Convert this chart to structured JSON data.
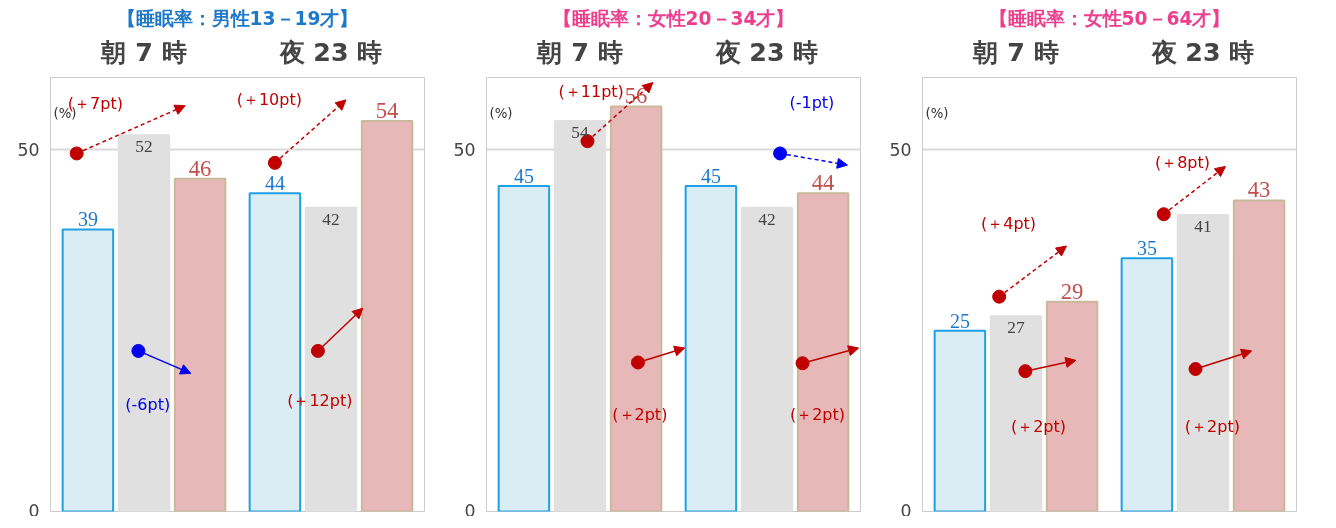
{
  "chart_data": [
    {
      "type": "bar",
      "title": "【睡眠率：男性13－19才】",
      "categories": [
        "朝 7 時",
        "夜 23 時"
      ],
      "ylabel": "(%)",
      "ylim": [
        0,
        60
      ],
      "yticks": [
        0,
        50
      ],
      "grid": "y",
      "data_labels": true,
      "series": [
        {
          "color": "#daedf5",
          "values": [
            39,
            44
          ]
        },
        {
          "color": "#e0e0e0",
          "values": [
            52,
            42
          ]
        },
        {
          "color": "#e6b8b7",
          "values": [
            46,
            54
          ]
        }
      ],
      "annotations": [
        "(＋7pt)",
        "(＋10pt)",
        "(-6pt)",
        "(＋12pt)"
      ]
    },
    {
      "type": "bar",
      "title": "【睡眠率：女性20－34才】",
      "categories": [
        "朝 7 時",
        "夜 23 時"
      ],
      "ylabel": "(%)",
      "ylim": [
        0,
        60
      ],
      "yticks": [
        0,
        50
      ],
      "grid": "y",
      "data_labels": true,
      "series": [
        {
          "color": "#daedf5",
          "values": [
            45,
            45
          ]
        },
        {
          "color": "#e0e0e0",
          "values": [
            54,
            42
          ]
        },
        {
          "color": "#e6b8b7",
          "values": [
            56,
            44
          ]
        }
      ],
      "annotations": [
        "(＋11pt)",
        "(-1pt)",
        "(＋2pt)",
        "(＋2pt)"
      ]
    },
    {
      "type": "bar",
      "title": "【睡眠率：女性50－64才】",
      "categories": [
        "朝 7 時",
        "夜 23 時"
      ],
      "ylabel": "(%)",
      "ylim": [
        0,
        60
      ],
      "yticks": [
        0,
        50
      ],
      "grid": "y",
      "data_labels": true,
      "series": [
        {
          "color": "#daedf5",
          "values": [
            25,
            35
          ]
        },
        {
          "color": "#e0e0e0",
          "values": [
            27,
            41
          ]
        },
        {
          "color": "#e6b8b7",
          "values": [
            29,
            43
          ]
        }
      ],
      "annotations": [
        "(＋4pt)",
        "(＋8pt)",
        "(＋2pt)",
        "(＋2pt)"
      ]
    }
  ]
}
